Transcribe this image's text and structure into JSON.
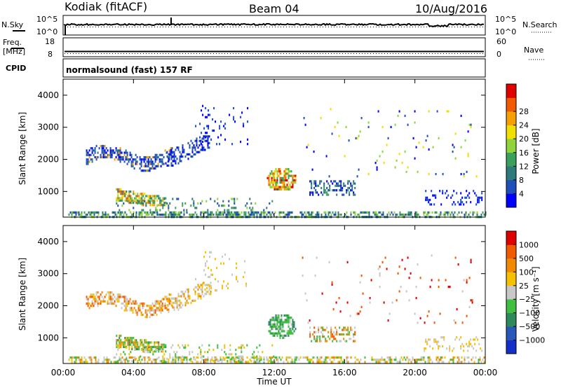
{
  "header": {
    "station": "Kodiak (fitACF)",
    "beam": "Beam 04",
    "date": "10/Aug/2016"
  },
  "panels": {
    "nsky_label": "N.Sky",
    "nsearch_label": "N.Search",
    "nsky_ticks": [
      "10^5",
      "10^0"
    ],
    "nsearch_ticks": [
      "10^5",
      "10^0"
    ],
    "freq_label_1": "Freq.",
    "freq_label_2": "[MHz]",
    "freq_ticks": [
      "18",
      "8"
    ],
    "nave_label": "Nave",
    "nave_ticks": [
      "60",
      "0"
    ],
    "cpid_label": "CPID",
    "cpid_text": "normalsound (fast) 157 RF"
  },
  "chart_data": [
    {
      "type": "heatmap",
      "name": "power",
      "ylabel": "Slant Range [km]",
      "xlabel": "",
      "xlim": [
        0,
        24
      ],
      "ylim": [
        200,
        4500
      ],
      "x_ticks": [
        "00:00",
        "04:00",
        "08:00",
        "12:00",
        "16:00",
        "20:00",
        "00:00"
      ],
      "y_ticks": [
        1000,
        2000,
        3000,
        4000
      ],
      "colorbar": {
        "label": "Power [dB]",
        "ticks": [
          "4",
          "8",
          "12",
          "16",
          "20",
          "24",
          "28"
        ],
        "colors": [
          "#0000ff",
          "#1f4fb8",
          "#2e7a7a",
          "#3aa05a",
          "#8fd43a",
          "#f0e000",
          "#f5a000",
          "#f05a00",
          "#e00000"
        ]
      },
      "regions": [
        {
          "t0": 0.3,
          "t1": 24.0,
          "r0": 220,
          "r1": 380,
          "density": 0.55,
          "levels": [
            1,
            2,
            3,
            4
          ],
          "jitter": 60
        },
        {
          "t0": 1.3,
          "t1": 6.2,
          "r0": 1650,
          "r1": 2450,
          "density": 0.55,
          "levels": [
            0,
            1,
            1,
            2,
            6
          ],
          "shape": "arc1"
        },
        {
          "t0": 5.8,
          "t1": 8.4,
          "r0": 1800,
          "r1": 2750,
          "density": 0.45,
          "levels": [
            0,
            1,
            1
          ],
          "shape": "arc2"
        },
        {
          "t0": 3.0,
          "t1": 5.8,
          "r0": 560,
          "r1": 1100,
          "density": 0.75,
          "levels": [
            2,
            3,
            4,
            5,
            6,
            7
          ],
          "shape": "blob1"
        },
        {
          "t0": 11.5,
          "t1": 13.3,
          "r0": 1000,
          "r1": 1800,
          "density": 0.7,
          "levels": [
            3,
            4,
            5,
            6,
            7,
            8
          ],
          "shape": "blob2"
        },
        {
          "t0": 14.0,
          "t1": 16.6,
          "r0": 900,
          "r1": 1350,
          "density": 0.35,
          "levels": [
            0,
            1,
            2,
            3
          ]
        },
        {
          "t0": 20.5,
          "t1": 23.9,
          "r0": 600,
          "r1": 1050,
          "density": 0.2,
          "levels": [
            0,
            1
          ]
        },
        {
          "t0": 3.0,
          "t1": 12.0,
          "r0": 300,
          "r1": 800,
          "density": 0.15,
          "levels": [
            1,
            2,
            3,
            4
          ]
        },
        {
          "t0": 7.5,
          "t1": 10.5,
          "r0": 2500,
          "r1": 3700,
          "density": 0.07,
          "levels": [
            0,
            1
          ]
        },
        {
          "t0": 13.5,
          "t1": 23.5,
          "r0": 1500,
          "r1": 3600,
          "density": 0.02,
          "levels": [
            0,
            1,
            4,
            5
          ]
        }
      ]
    },
    {
      "type": "heatmap",
      "name": "velocity",
      "ylabel": "Slant Range [km]",
      "xlabel": "Time UT",
      "xlim": [
        0,
        24
      ],
      "ylim": [
        200,
        4500
      ],
      "x_ticks": [
        "00:00",
        "04:00",
        "08:00",
        "12:00",
        "16:00",
        "20:00",
        "00:00"
      ],
      "y_ticks": [
        1000,
        2000,
        3000,
        4000
      ],
      "colorbar": {
        "label": "Velocity [m s⁻¹]",
        "ticks": [
          "1000",
          "500",
          "100",
          "25",
          "−25",
          "−100",
          "−500",
          "−1000"
        ],
        "colors": [
          "#1530c8",
          "#2a58b8",
          "#2e8a5a",
          "#3fbf3f",
          "#c8c8c8",
          "#f5c000",
          "#f08a00",
          "#f05a00",
          "#e00000"
        ]
      },
      "regions": [
        {
          "t0": 0.3,
          "t1": 24.0,
          "r0": 220,
          "r1": 420,
          "density": 0.5,
          "levels": [
            3,
            4,
            4,
            5,
            6
          ],
          "jitter": 60
        },
        {
          "t0": 1.3,
          "t1": 6.2,
          "r0": 1650,
          "r1": 2450,
          "density": 0.55,
          "levels": [
            4,
            5,
            6,
            7,
            4
          ],
          "shape": "arc1"
        },
        {
          "t0": 5.8,
          "t1": 8.4,
          "r0": 1800,
          "r1": 2750,
          "density": 0.45,
          "levels": [
            4,
            4,
            5,
            6
          ],
          "shape": "arc2"
        },
        {
          "t0": 3.0,
          "t1": 5.8,
          "r0": 560,
          "r1": 1100,
          "density": 0.75,
          "levels": [
            2,
            3,
            3,
            5,
            6
          ],
          "shape": "blob1"
        },
        {
          "t0": 11.5,
          "t1": 13.3,
          "r0": 1000,
          "r1": 1800,
          "density": 0.7,
          "levels": [
            2,
            3,
            3,
            4
          ],
          "shape": "blob2"
        },
        {
          "t0": 14.0,
          "t1": 16.6,
          "r0": 900,
          "r1": 1350,
          "density": 0.35,
          "levels": [
            3,
            4,
            6,
            7
          ]
        },
        {
          "t0": 20.5,
          "t1": 23.9,
          "r0": 600,
          "r1": 1050,
          "density": 0.2,
          "levels": [
            4,
            5
          ]
        },
        {
          "t0": 3.0,
          "t1": 12.0,
          "r0": 300,
          "r1": 800,
          "density": 0.15,
          "levels": [
            3,
            4,
            5
          ]
        },
        {
          "t0": 7.5,
          "t1": 10.5,
          "r0": 2500,
          "r1": 3700,
          "density": 0.07,
          "levels": [
            4,
            5
          ]
        },
        {
          "t0": 13.5,
          "t1": 23.5,
          "r0": 1500,
          "r1": 3600,
          "density": 0.02,
          "levels": [
            4,
            7,
            8
          ]
        }
      ]
    }
  ]
}
